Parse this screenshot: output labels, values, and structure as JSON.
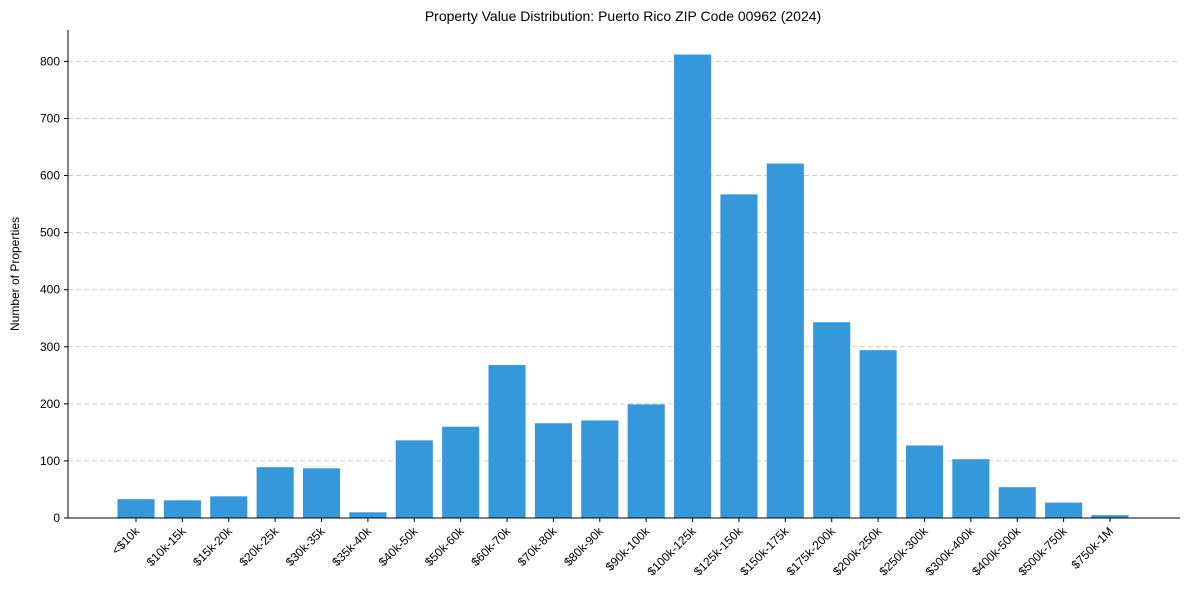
{
  "chart_data": {
    "type": "bar",
    "title": "Property Value Distribution: Puerto Rico ZIP Code 00962 (2024)",
    "xlabel": "",
    "ylabel": "Number of Properties",
    "categories": [
      "<$10k",
      "$10k-15k",
      "$15k-20k",
      "$20k-25k",
      "$30k-35k",
      "$35k-40k",
      "$40k-50k",
      "$50k-60k",
      "$60k-70k",
      "$70k-80k",
      "$80k-90k",
      "$90k-100k",
      "$100k-125k",
      "$125k-150k",
      "$150k-175k",
      "$175k-200k",
      "$200k-250k",
      "$250k-300k",
      "$300k-400k",
      "$400k-500k",
      "$500k-750k",
      "$750k-1M"
    ],
    "values": [
      33,
      31,
      38,
      89,
      87,
      10,
      136,
      160,
      268,
      166,
      171,
      199,
      812,
      567,
      621,
      343,
      294,
      127,
      103,
      54,
      27,
      5
    ],
    "ylim": [
      0,
      855
    ],
    "yticks": [
      0,
      100,
      200,
      300,
      400,
      500,
      600,
      700,
      800
    ],
    "grid": true,
    "color": "#3498db"
  }
}
